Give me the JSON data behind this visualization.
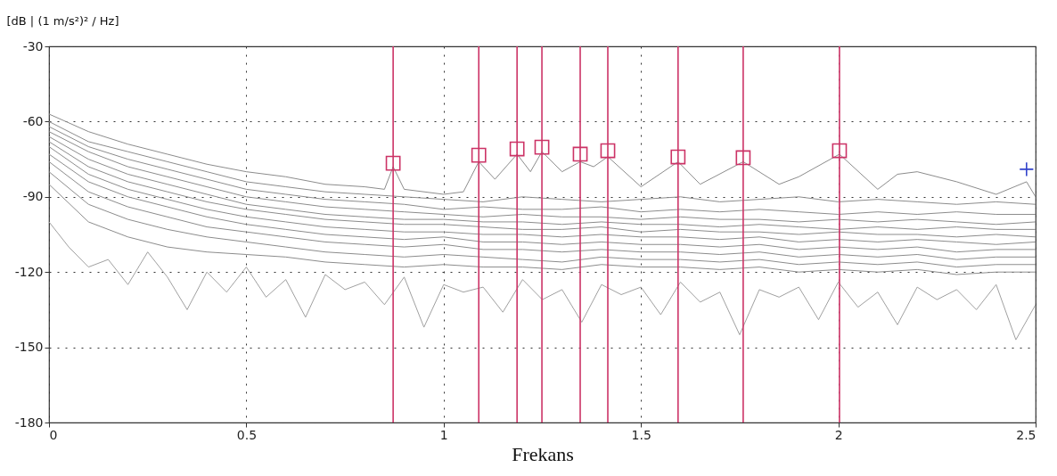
{
  "chart_data": {
    "type": "line",
    "xlabel": "Frekans",
    "ylabel": "[dB | (1 m/s²)² / Hz]",
    "xlim": [
      0,
      2.5
    ],
    "xticks": [
      0,
      0.5,
      1,
      1.5,
      2,
      2.5
    ],
    "ylim": [
      -180,
      -30
    ],
    "yticks": [
      -30,
      -60,
      -90,
      -120,
      -150,
      -180
    ],
    "grid": true,
    "line_style": "solid",
    "x": [
      0,
      0.1,
      0.2,
      0.3,
      0.4,
      0.5,
      0.6,
      0.7,
      0.8,
      0.9,
      1,
      1.1,
      1.2,
      1.3,
      1.4,
      1.5,
      1.6,
      1.7,
      1.8,
      1.9,
      2,
      2.1,
      2.2,
      2.3,
      2.4,
      2.5
    ],
    "series": [
      {
        "color": "#8c8c8c",
        "x": [
          0,
          0.1,
          0.2,
          0.3,
          0.4,
          0.5,
          0.6,
          0.7,
          0.8,
          0.85,
          0.872,
          0.9,
          1.0,
          1.05,
          1.089,
          1.13,
          1.186,
          1.22,
          1.249,
          1.3,
          1.346,
          1.38,
          1.416,
          1.5,
          1.594,
          1.65,
          1.759,
          1.85,
          1.9,
          2.003,
          2.1,
          2.15,
          2.2,
          2.3,
          2.4,
          2.477,
          2.5
        ],
        "values": [
          -57,
          -64,
          -69,
          -73,
          -77,
          -80,
          -82,
          -85,
          -86,
          -87,
          -78,
          -87,
          -89,
          -88,
          -76,
          -83,
          -73,
          -80,
          -72,
          -80,
          -76,
          -78,
          -74,
          -86,
          -76,
          -85,
          -76,
          -85,
          -82,
          -73,
          -87,
          -81,
          -80,
          -84,
          -89,
          -84,
          -90
        ]
      },
      {
        "color": "#8c8c8c",
        "values": [
          -60,
          -68,
          -72,
          -76,
          -80,
          -84,
          -86,
          -88,
          -89,
          -90,
          -91,
          -92,
          -90,
          -91,
          -92,
          -91,
          -90,
          -92,
          -91,
          -90,
          -92,
          -91,
          -92,
          -93,
          -92,
          -93
        ]
      },
      {
        "color": "#8c8c8c",
        "values": [
          -62,
          -70,
          -75,
          -79,
          -83,
          -87,
          -89,
          -91,
          -92,
          -93,
          -95,
          -94,
          -95,
          -95,
          -94,
          -96,
          -95,
          -96,
          -95,
          -96,
          -97,
          -96,
          -97,
          -96,
          -97,
          -97
        ]
      },
      {
        "color": "#8c8c8c",
        "values": [
          -64,
          -72,
          -78,
          -82,
          -86,
          -90,
          -92,
          -94,
          -95,
          -96,
          -97,
          -98,
          -97,
          -98,
          -98,
          -99,
          -98,
          -99,
          -99,
          -100,
          -99,
          -100,
          -99,
          -100,
          -101,
          -100
        ]
      },
      {
        "color": "#8c8c8c",
        "values": [
          -66,
          -75,
          -81,
          -85,
          -89,
          -93,
          -95,
          -97,
          -98,
          -99,
          -99,
          -100,
          -100,
          -101,
          -100,
          -101,
          -101,
          -102,
          -101,
          -102,
          -103,
          -102,
          -103,
          -102,
          -103,
          -103
        ]
      },
      {
        "color": "#8c8c8c",
        "values": [
          -68,
          -78,
          -84,
          -88,
          -92,
          -95,
          -97,
          -99,
          -100,
          -101,
          -101,
          -102,
          -103,
          -103,
          -102,
          -104,
          -103,
          -104,
          -104,
          -105,
          -104,
          -105,
          -105,
          -106,
          -105,
          -106
        ]
      },
      {
        "color": "#8c8c8c",
        "values": [
          -70,
          -81,
          -87,
          -91,
          -95,
          -98,
          -100,
          -102,
          -103,
          -104,
          -104,
          -105,
          -105,
          -106,
          -105,
          -106,
          -106,
          -107,
          -106,
          -108,
          -107,
          -108,
          -107,
          -108,
          -109,
          -108
        ]
      },
      {
        "color": "#8c8c8c",
        "values": [
          -73,
          -84,
          -90,
          -94,
          -98,
          -101,
          -103,
          -105,
          -106,
          -107,
          -106,
          -108,
          -108,
          -109,
          -108,
          -109,
          -109,
          -110,
          -109,
          -111,
          -110,
          -111,
          -110,
          -112,
          -111,
          -111
        ]
      },
      {
        "color": "#8c8c8c",
        "values": [
          -76,
          -88,
          -94,
          -98,
          -102,
          -104,
          -106,
          -108,
          -109,
          -110,
          -109,
          -111,
          -111,
          -112,
          -111,
          -112,
          -112,
          -113,
          -112,
          -114,
          -113,
          -114,
          -113,
          -115,
          -114,
          -114
        ]
      },
      {
        "color": "#8c8c8c",
        "values": [
          -80,
          -93,
          -99,
          -103,
          -106,
          -108,
          -110,
          -112,
          -113,
          -114,
          -113,
          -114,
          -115,
          -116,
          -114,
          -115,
          -115,
          -116,
          -115,
          -117,
          -116,
          -117,
          -116,
          -118,
          -117,
          -117
        ]
      },
      {
        "color": "#8c8c8c",
        "values": [
          -85,
          -100,
          -106,
          -110,
          -112,
          -113,
          -114,
          -116,
          -117,
          -118,
          -117,
          -118,
          -118,
          -119,
          -117,
          -118,
          -118,
          -119,
          -118,
          -120,
          -119,
          -120,
          -119,
          -121,
          -120,
          -120
        ]
      },
      {
        "color": "#a0a0a0",
        "x": [
          0,
          0.05,
          0.1,
          0.15,
          0.2,
          0.25,
          0.3,
          0.35,
          0.4,
          0.45,
          0.5,
          0.55,
          0.6,
          0.65,
          0.7,
          0.75,
          0.8,
          0.85,
          0.9,
          0.95,
          1,
          1.05,
          1.1,
          1.15,
          1.2,
          1.25,
          1.3,
          1.35,
          1.4,
          1.45,
          1.5,
          1.55,
          1.6,
          1.65,
          1.7,
          1.75,
          1.8,
          1.85,
          1.9,
          1.95,
          2,
          2.05,
          2.1,
          2.15,
          2.2,
          2.25,
          2.3,
          2.35,
          2.4,
          2.45,
          2.5
        ],
        "values": [
          -100,
          -110,
          -118,
          -115,
          -125,
          -112,
          -122,
          -135,
          -120,
          -128,
          -118,
          -130,
          -123,
          -138,
          -121,
          -127,
          -124,
          -133,
          -122,
          -142,
          -125,
          -128,
          -126,
          -136,
          -123,
          -131,
          -127,
          -140,
          -125,
          -129,
          -126,
          -137,
          -124,
          -132,
          -128,
          -145,
          -127,
          -130,
          -126,
          -139,
          -124,
          -134,
          -128,
          -141,
          -126,
          -131,
          -127,
          -135,
          -125,
          -147,
          -133
        ]
      },
      {
        "type": "scatter",
        "marker": "square",
        "color": "#cc3366",
        "x": [
          0.872,
          1.089,
          1.186,
          1.249,
          1.346,
          1.416,
          1.594,
          1.759,
          2.003
        ],
        "values": [
          -76.6,
          -73.4,
          -70.9,
          -70.2,
          -73,
          -71.6,
          -74.1,
          -74.4,
          -71.6
        ]
      },
      {
        "type": "scatter",
        "marker": "cross",
        "color": "#3344cc",
        "x": [
          2.477
        ],
        "values": [
          -79
        ]
      }
    ],
    "ref_lines": [
      {
        "axis": "x",
        "value": 0.872,
        "color": "#cc3366"
      },
      {
        "axis": "x",
        "value": 1.089,
        "color": "#cc3366"
      },
      {
        "axis": "x",
        "value": 1.186,
        "color": "#cc3366"
      },
      {
        "axis": "x",
        "value": 1.249,
        "color": "#cc3366"
      },
      {
        "axis": "x",
        "value": 1.346,
        "color": "#cc3366"
      },
      {
        "axis": "x",
        "value": 1.416,
        "color": "#cc3366"
      },
      {
        "axis": "x",
        "value": 1.594,
        "color": "#cc3366"
      },
      {
        "axis": "x",
        "value": 1.759,
        "color": "#cc3366"
      },
      {
        "axis": "x",
        "value": 2.003,
        "color": "#cc3366"
      }
    ]
  }
}
